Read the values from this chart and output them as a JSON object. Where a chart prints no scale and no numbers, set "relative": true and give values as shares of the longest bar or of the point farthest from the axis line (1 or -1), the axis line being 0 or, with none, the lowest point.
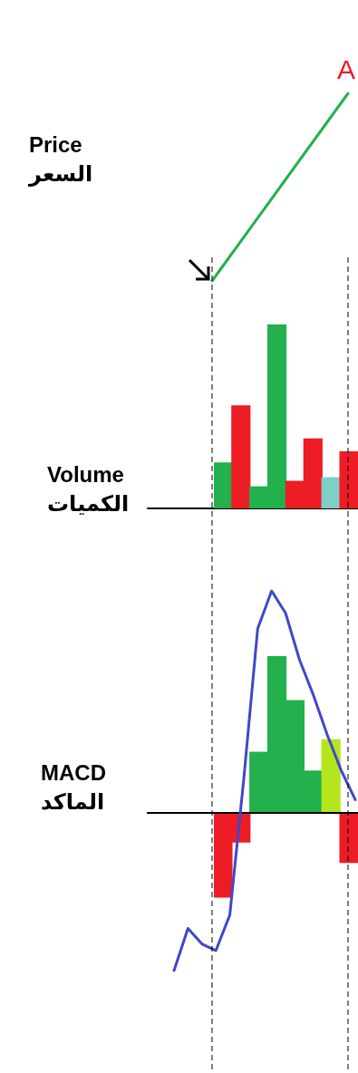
{
  "chart_data": [
    {
      "type": "line",
      "ylabel": "Price\nالسعر",
      "relative": true,
      "categories": [
        null,
        null
      ],
      "marker": "none",
      "series": [
        {
          "color": "#22b14c",
          "values": [
            0,
            1
          ]
        }
      ],
      "annotations": [
        "A"
      ]
    },
    {
      "type": "bar",
      "ylabel": "Volume\nالكميات",
      "relative": true,
      "categories": [
        null,
        null,
        null,
        null,
        null,
        null,
        null,
        null
      ],
      "values": [
        0.25,
        0.56,
        0.12,
        1,
        0.15,
        0.38,
        0.17,
        0.31
      ],
      "colors": [
        "#22b14c",
        "#ee1c24",
        "#22b14c",
        "#22b14c",
        "#ee1c24",
        "#ee1c24",
        "#7fcfc8",
        "#ee1c24"
      ]
    },
    {
      "type": "bar",
      "ylabel": "MACD\nالماكد",
      "relative": true,
      "categories": [
        null,
        null,
        null,
        null,
        null,
        null,
        null,
        null
      ],
      "values": [
        -0.54,
        -0.19,
        0.39,
        1,
        0.72,
        0.27,
        0.47,
        -0.32
      ],
      "colors": [
        "#ee1c24",
        "#ee1c24",
        "#22b14c",
        "#22b14c",
        "#22b14c",
        "#22b14c",
        "#b5e61d",
        "#ee1c24"
      ]
    },
    {
      "type": "line",
      "relative": true,
      "categories": [
        null,
        null,
        null,
        null,
        null,
        null,
        null,
        null,
        null,
        null,
        null,
        null,
        null,
        null
      ],
      "marker": "none",
      "series": [
        {
          "color": "#4048c8",
          "values": [
            -0.71,
            -0.52,
            -0.59,
            -0.62,
            -0.46,
            0.15,
            0.83,
            1,
            0.9,
            0.69,
            0.53,
            0.35,
            0.19,
            0.06
          ]
        }
      ]
    }
  ]
}
